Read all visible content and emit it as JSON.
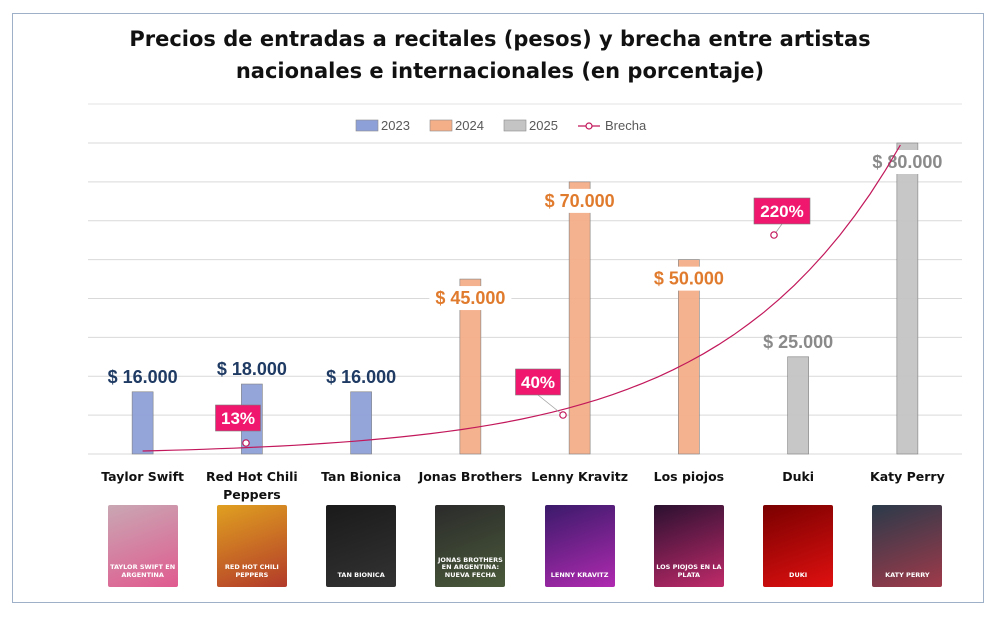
{
  "chart_data": {
    "type": "bar",
    "title_lines": [
      "Precios de entradas a recitales (pesos) y brecha entre artistas",
      "nacionales e internacionales (en porcentaje)"
    ],
    "categories": [
      [
        "Taylor Swift"
      ],
      [
        "Red Hot Chili",
        "Peppers"
      ],
      [
        "Tan Bionica"
      ],
      [
        "Jonas Brothers"
      ],
      [
        "Lenny Kravitz"
      ],
      [
        "Los piojos"
      ],
      [
        "Duki"
      ],
      [
        "Katy Perry"
      ]
    ],
    "series": [
      {
        "name": "2023",
        "color": "#8ea0d8",
        "values": [
          16000,
          18000,
          16000,
          null,
          null,
          null,
          null,
          null
        ]
      },
      {
        "name": "2024",
        "color": "#f4ae88",
        "values": [
          null,
          null,
          null,
          45000,
          70000,
          50000,
          null,
          null
        ]
      },
      {
        "name": "2025",
        "color": "#c4c4c4",
        "values": [
          null,
          null,
          null,
          null,
          null,
          null,
          25000,
          80000
        ]
      }
    ],
    "value_labels": [
      "$ 16.000",
      "$ 18.000",
      "$ 16.000",
      "$ 45.000",
      "$ 70.000",
      "$ 50.000",
      "$ 25.000",
      "$ 80.000"
    ],
    "label_colors": [
      "#1f3b64",
      "#1f3b64",
      "#1f3b64",
      "#e07b2e",
      "#e07b2e",
      "#e07b2e",
      "#8a8a8a",
      "#8a8a8a"
    ],
    "gap_line": {
      "name": "Brecha",
      "color": "#c2185b",
      "points": [
        {
          "category": "Red Hot Chili Peppers",
          "label": "13%",
          "value": 13
        },
        {
          "category": "Lenny Kravitz",
          "label": "40%",
          "value": 40
        },
        {
          "category": "Duki",
          "label": "220%",
          "value": 220
        }
      ]
    },
    "ylim": [
      0,
      80000
    ],
    "grid": true,
    "legend": "top-center",
    "y_axis_visible": false
  },
  "thumbnails": [
    {
      "name": "taylor-swift-poster",
      "text": "TAYLOR SWIFT EN ARGENTINA",
      "bg1": "#c9a7b3",
      "bg2": "#e05a8f"
    },
    {
      "name": "rhcp-poster",
      "text": "RED HOT CHILI PEPPERS",
      "bg1": "#e0a020",
      "bg2": "#b23a2a"
    },
    {
      "name": "tan-bionica-poster",
      "text": "TAN BIONICA",
      "bg1": "#1a1a1a",
      "bg2": "#333333"
    },
    {
      "name": "jonas-brothers-poster",
      "text": "JONAS BROTHERS EN ARGENTINA: NUEVA FECHA",
      "bg1": "#2b2b2b",
      "bg2": "#4a5a3a"
    },
    {
      "name": "lenny-kravitz-poster",
      "text": "LENNY KRAVITZ",
      "bg1": "#3a1a6a",
      "bg2": "#b02ab0"
    },
    {
      "name": "los-piojos-poster",
      "text": "LOS PIOJOS EN LA PLATA",
      "bg1": "#2a1030",
      "bg2": "#c02a6a"
    },
    {
      "name": "duki-poster",
      "text": "DUKI",
      "bg1": "#7a0000",
      "bg2": "#e01010"
    },
    {
      "name": "katy-perry-poster",
      "text": "KATY PERRY",
      "bg1": "#2a3a4a",
      "bg2": "#a03a4a"
    }
  ]
}
